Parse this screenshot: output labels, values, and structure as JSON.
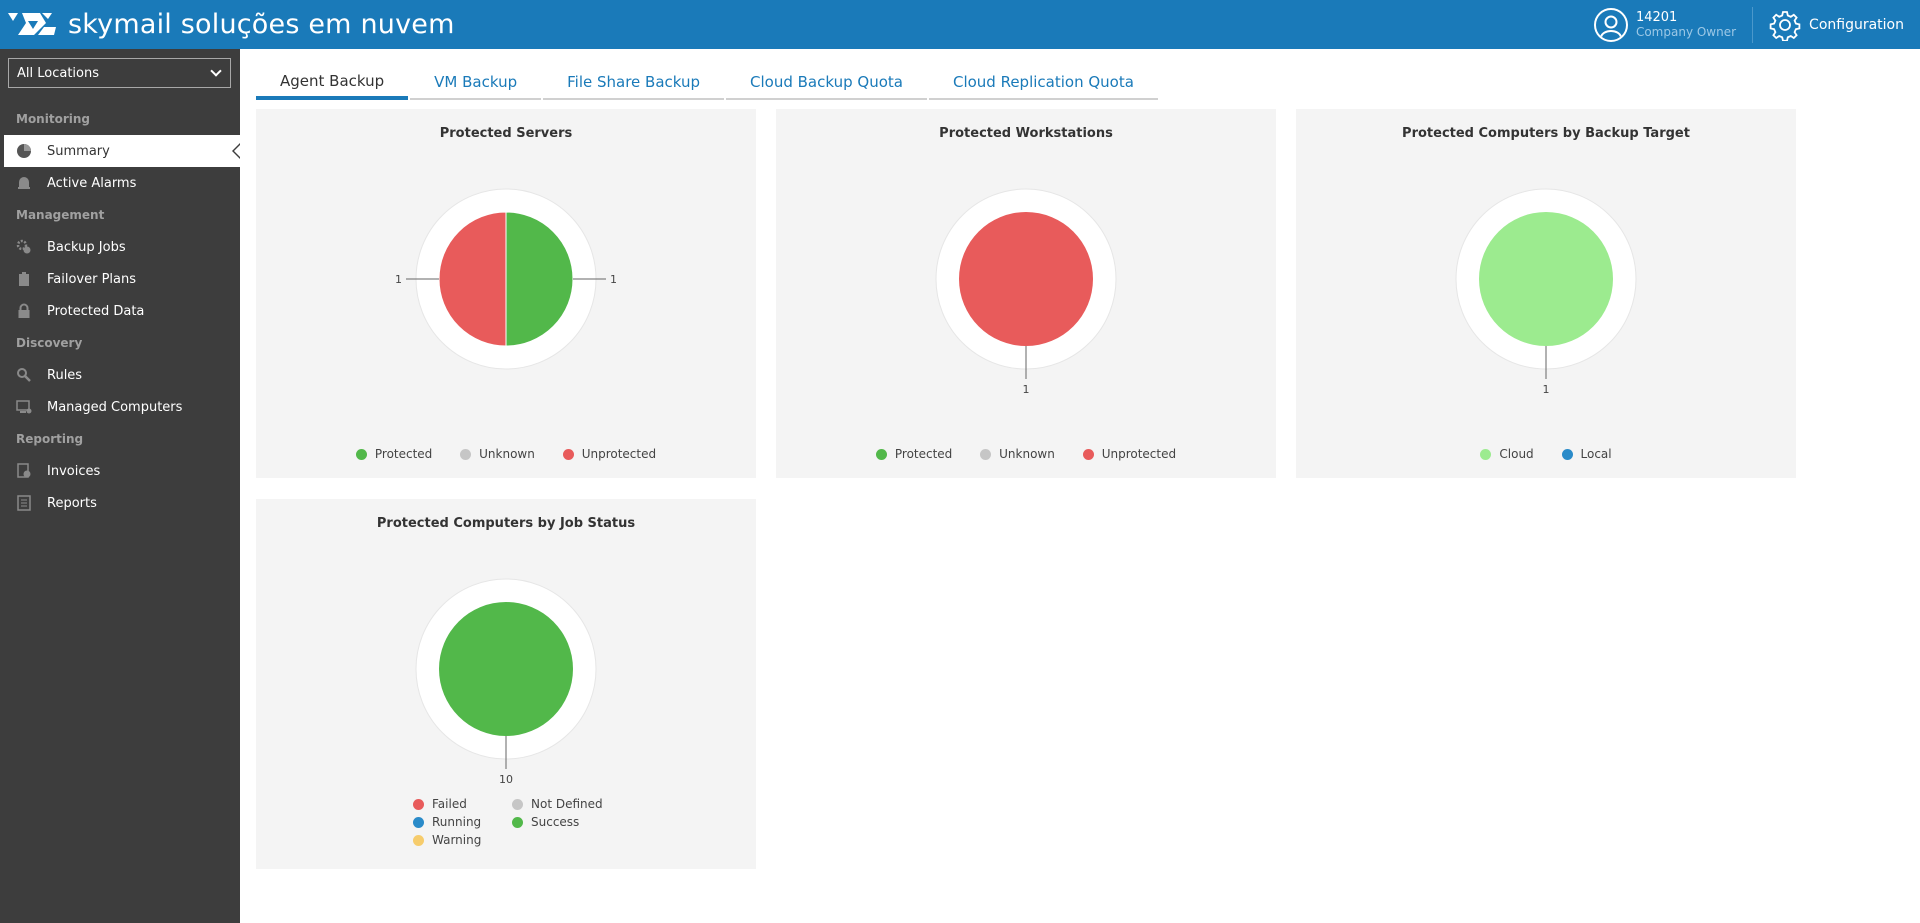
{
  "header": {
    "brand": "skymail soluções em nuvem",
    "user_id": "14201",
    "user_role": "Company Owner",
    "config_label": "Configuration",
    "bg_color": "#1a7ab9"
  },
  "sidebar": {
    "location_select": "All Locations",
    "sections": [
      {
        "label": "Monitoring"
      },
      {
        "label": "Management"
      },
      {
        "label": "Discovery"
      },
      {
        "label": "Reporting"
      }
    ],
    "items": [
      {
        "label": "Summary",
        "icon": "pie-chart-icon",
        "active": true
      },
      {
        "label": "Active Alarms",
        "icon": "bell-icon"
      },
      {
        "label": "Backup Jobs",
        "icon": "gear-sync-icon"
      },
      {
        "label": "Failover Plans",
        "icon": "clipboard-icon"
      },
      {
        "label": "Protected Data",
        "icon": "lock-icon"
      },
      {
        "label": "Rules",
        "icon": "search-gear-icon"
      },
      {
        "label": "Managed Computers",
        "icon": "computer-gear-icon"
      },
      {
        "label": "Invoices",
        "icon": "invoice-icon"
      },
      {
        "label": "Reports",
        "icon": "report-icon"
      }
    ]
  },
  "tabs": [
    {
      "label": "Agent Backup",
      "active": true
    },
    {
      "label": "VM Backup"
    },
    {
      "label": "File Share Backup"
    },
    {
      "label": "Cloud Backup Quota"
    },
    {
      "label": "Cloud Replication Quota"
    }
  ],
  "colors": {
    "protected": "#52b84a",
    "unknown": "#c6c6c6",
    "unprotected": "#e85b5b",
    "cloud": "#9ceb8f",
    "local": "#2a8bc9",
    "failed": "#e85b5b",
    "not_defined": "#c6c6c6",
    "running": "#2a8bc9",
    "success": "#52b84a",
    "warning": "#f6cc6c"
  },
  "chart_data": [
    {
      "type": "pie",
      "title": "Protected Servers",
      "categories": [
        "Protected",
        "Unknown",
        "Unprotected"
      ],
      "values": [
        1,
        0,
        1
      ],
      "labels": [
        "1",
        "",
        "1"
      ]
    },
    {
      "type": "pie",
      "title": "Protected Workstations",
      "categories": [
        "Protected",
        "Unknown",
        "Unprotected"
      ],
      "values": [
        0,
        0,
        1
      ],
      "labels": [
        "",
        "",
        "1"
      ]
    },
    {
      "type": "pie",
      "title": "Protected Computers by Backup Target",
      "categories": [
        "Cloud",
        "Local"
      ],
      "values": [
        1,
        0
      ],
      "labels": [
        "1",
        ""
      ]
    },
    {
      "type": "pie",
      "title": "Protected Computers by Job Status",
      "categories": [
        "Failed",
        "Not Defined",
        "Running",
        "Success",
        "Warning"
      ],
      "values": [
        0,
        0,
        0,
        10,
        0
      ],
      "labels": [
        "",
        "",
        "",
        "10",
        ""
      ]
    }
  ]
}
